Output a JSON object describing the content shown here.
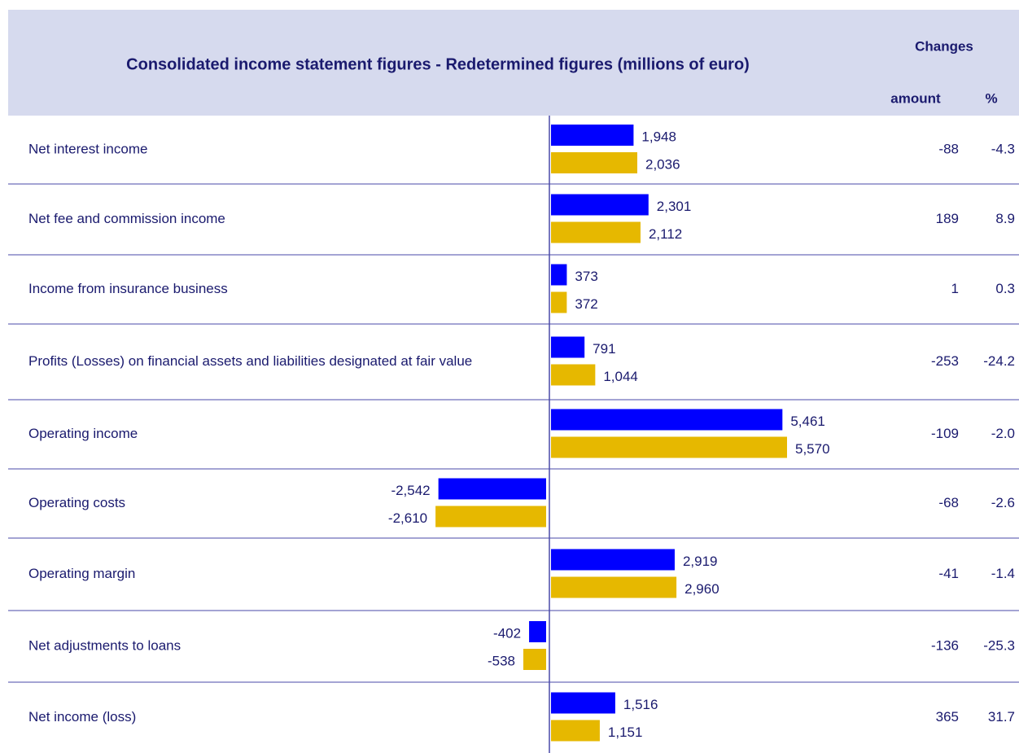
{
  "chart_data": {
    "type": "bar",
    "orientation": "horizontal",
    "title": "Consolidated  income  statement  figures - Redetermined  figures  (millions of euro)",
    "changes_header": "Changes",
    "amount_header": "amount",
    "percent_header": "%",
    "categories": [
      "Net interest income",
      "Net fee and commission income",
      "Income from insurance business",
      "Profits (Losses) on financial assets and liabilities designated at fair value",
      "Operating income",
      "Operating costs",
      "Operating margin",
      "Net adjustments to loans",
      "Net income (loss)"
    ],
    "series": [
      {
        "color": "#0000ff",
        "values": [
          1948,
          2301,
          373,
          791,
          5461,
          -2542,
          2919,
          -402,
          1516
        ],
        "value_labels": [
          "1,948",
          "2,301",
          "373",
          "791",
          "5,461",
          "-2,542",
          "2,919",
          "-402",
          "1,516"
        ]
      },
      {
        "color": "#e6b800",
        "values": [
          2036,
          2112,
          372,
          1044,
          5570,
          -2610,
          2960,
          -538,
          1151
        ],
        "value_labels": [
          "2,036",
          "2,112",
          "372",
          "1,044",
          "5,570",
          "-2,610",
          "2,960",
          "-538",
          "1,151"
        ]
      }
    ],
    "changes_amount": [
      -88,
      189,
      1,
      -253,
      -109,
      -68,
      -41,
      -136,
      365
    ],
    "changes_percent": [
      -4.3,
      8.9,
      0.3,
      -24.2,
      -2.0,
      -2.6,
      -1.4,
      -25.3,
      31.7
    ],
    "changes_percent_labels": [
      "-4.3",
      "8.9",
      "0.3",
      "-24.2",
      "-2.0",
      "-2.6",
      "-1.4",
      "-25.3",
      "31.7"
    ]
  }
}
